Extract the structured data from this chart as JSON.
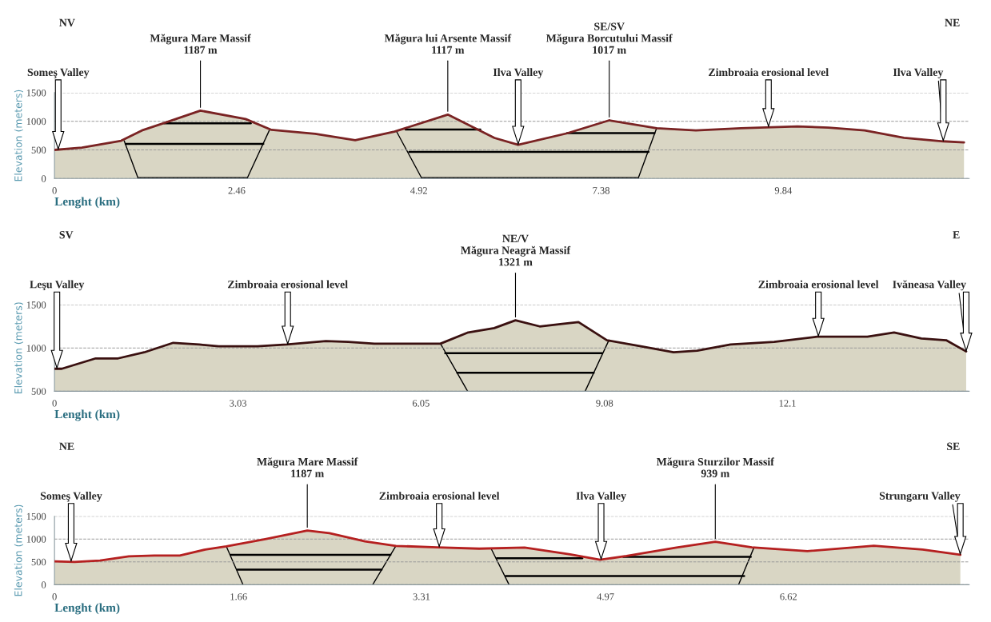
{
  "chart_data": [
    {
      "type": "area",
      "xlabel": "Lenght (km)",
      "ylabel": "Elevation (meters)",
      "grid": "y",
      "x": [
        0,
        0.37,
        0.9,
        1.18,
        1.48,
        1.97,
        2.58,
        2.93,
        3.52,
        4.06,
        4.59,
        5.31,
        5.94,
        6.26,
        6.92,
        7.49,
        8.13,
        8.66,
        9.27,
        10.03,
        10.45,
        10.94,
        11.47,
        12.0,
        12.28
      ],
      "series": [
        {
          "color": "#7a2323",
          "values": [
            500,
            540,
            660,
            840,
            970,
            1187,
            1040,
            850,
            780,
            670,
            820,
            1117,
            710,
            590,
            790,
            1017,
            880,
            840,
            880,
            910,
            890,
            840,
            710,
            650,
            630
          ]
        }
      ],
      "xlim": [
        0,
        12.35
      ],
      "ylim": [
        0,
        1500
      ],
      "xticks": [
        0,
        2.46,
        4.92,
        7.38,
        9.84
      ],
      "yticks": [
        0,
        500,
        1000,
        1500
      ],
      "annotations": [
        "NV",
        "NE",
        {
          "text": "Someş Valley",
          "x": 0.05,
          "y": 500
        },
        {
          "text": "Măgura Mare Massif\n1187 m",
          "x": 1.97,
          "y": 1187
        },
        {
          "text": "Măgura lui Arsente Massif\n1117 m",
          "x": 5.31,
          "y": 1117
        },
        {
          "text": "Ilva Valley",
          "x": 6.26,
          "y": 590
        },
        {
          "text": "SE/SV\nMăgura Borcutului Massif\n1017 m",
          "x": 7.49,
          "y": 1017
        },
        {
          "text": "Zimbroaia erosional level",
          "x": 9.64,
          "y": 900
        },
        {
          "text": "Ilva Valley",
          "x": 12.0,
          "y": 650
        }
      ]
    },
    {
      "type": "area",
      "xlabel": "Lenght (km)",
      "ylabel": "Elevation (meters)",
      "grid": "y",
      "x": [
        0,
        0.12,
        0.68,
        1.05,
        1.48,
        1.96,
        2.39,
        2.71,
        3.35,
        3.83,
        4.48,
        4.85,
        5.28,
        5.76,
        6.37,
        6.83,
        7.26,
        7.61,
        8.01,
        8.38,
        8.65,
        9.12,
        9.68,
        10.22,
        10.61,
        11.16,
        11.88,
        12.59,
        13.42,
        13.86,
        14.31,
        14.72,
        15.05
      ],
      "series": [
        {
          "color": "#3a1010",
          "values": [
            760,
            760,
            880,
            880,
            950,
            1060,
            1040,
            1020,
            1020,
            1040,
            1080,
            1070,
            1050,
            1050,
            1050,
            1180,
            1230,
            1321,
            1250,
            1280,
            1300,
            1090,
            1020,
            950,
            970,
            1040,
            1070,
            1130,
            1130,
            1180,
            1110,
            1090,
            960
          ]
        }
      ],
      "xlim": [
        0,
        15.1
      ],
      "ylim": [
        500,
        1500
      ],
      "xticks": [
        0,
        3.03,
        6.05,
        9.08,
        12.1
      ],
      "yticks": [
        500,
        1000,
        1500
      ],
      "annotations": [
        "SV",
        "E",
        {
          "text": "Leşu Valley",
          "x": 0.04,
          "y": 760
        },
        {
          "text": "Zimbroaia erosional level",
          "x": 3.85,
          "y": 1040
        },
        {
          "text": "NE/V\nMăgura Neagră Massif\n1321 m",
          "x": 7.61,
          "y": 1321
        },
        {
          "text": "Zimbroaia erosional level",
          "x": 12.61,
          "y": 1130
        },
        {
          "text": "Ivăneasa Valley",
          "x": 15.05,
          "y": 960
        }
      ]
    },
    {
      "type": "area",
      "xlabel": "Lenght (km)",
      "ylabel": "Elevation (meters)",
      "grid": "y",
      "x": [
        0,
        0.18,
        0.41,
        0.67,
        0.9,
        1.13,
        1.36,
        1.55,
        1.9,
        2.28,
        2.48,
        2.8,
        3.08,
        3.45,
        3.83,
        4.24,
        4.65,
        4.92,
        5.16,
        5.61,
        5.96,
        6.29,
        6.79,
        7.39,
        7.83,
        8.17
      ],
      "series": [
        {
          "color": "#b52020",
          "values": [
            510,
            500,
            530,
            620,
            640,
            640,
            770,
            840,
            1000,
            1187,
            1130,
            950,
            850,
            820,
            790,
            815,
            665,
            545,
            630,
            815,
            939,
            820,
            735,
            855,
            770,
            655
          ]
        }
      ],
      "xlim": [
        0,
        8.25
      ],
      "ylim": [
        0,
        1500
      ],
      "xticks": [
        0,
        1.66,
        3.31,
        4.97,
        6.62
      ],
      "yticks": [
        0,
        500,
        1000,
        1500
      ],
      "annotations": [
        "NE",
        "SE",
        {
          "text": "Someş Valley",
          "x": 0.15,
          "y": 505
        },
        {
          "text": "Măgura Mare Massif\n1187 m",
          "x": 2.28,
          "y": 1187
        },
        {
          "text": "Zimbroaia erosional level",
          "x": 3.47,
          "y": 820
        },
        {
          "text": "Ilva Valley",
          "x": 4.93,
          "y": 545
        },
        {
          "text": "Măgura Sturzilor Massif\n939 m",
          "x": 5.96,
          "y": 939
        },
        {
          "text": "Strungaru Valley",
          "x": 8.17,
          "y": 655
        }
      ]
    }
  ]
}
